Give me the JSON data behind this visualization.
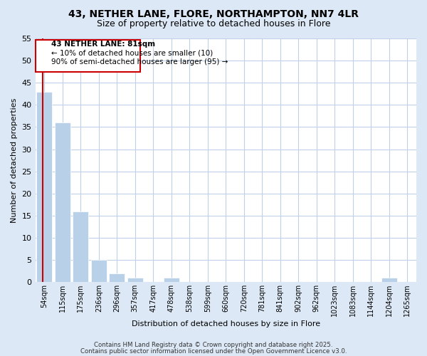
{
  "title1": "43, NETHER LANE, FLORE, NORTHAMPTON, NN7 4LR",
  "title2": "Size of property relative to detached houses in Flore",
  "xlabel": "Distribution of detached houses by size in Flore",
  "ylabel": "Number of detached properties",
  "categories": [
    "54sqm",
    "115sqm",
    "175sqm",
    "236sqm",
    "296sqm",
    "357sqm",
    "417sqm",
    "478sqm",
    "538sqm",
    "599sqm",
    "660sqm",
    "720sqm",
    "781sqm",
    "841sqm",
    "902sqm",
    "962sqm",
    "1023sqm",
    "1083sqm",
    "1144sqm",
    "1204sqm",
    "1265sqm"
  ],
  "values": [
    43,
    36,
    16,
    5,
    2,
    1,
    0,
    1,
    0,
    0,
    0,
    0,
    0,
    0,
    0,
    0,
    0,
    0,
    0,
    1,
    0
  ],
  "bar_color": "#b8d0e8",
  "highlight_color": "#cc0000",
  "ylim": [
    0,
    55
  ],
  "yticks": [
    0,
    5,
    10,
    15,
    20,
    25,
    30,
    35,
    40,
    45,
    50,
    55
  ],
  "annotation_title": "43 NETHER LANE: 81sqm",
  "annotation_line1": "← 10% of detached houses are smaller (10)",
  "annotation_line2": "90% of semi-detached houses are larger (95) →",
  "footer1": "Contains HM Land Registry data © Crown copyright and database right 2025.",
  "footer2": "Contains public sector information licensed under the Open Government Licence v3.0.",
  "bg_color": "#dce8f5",
  "plot_bg_color": "#ffffff",
  "grid_color": "#c0d0e8",
  "red_line_x": -0.08
}
